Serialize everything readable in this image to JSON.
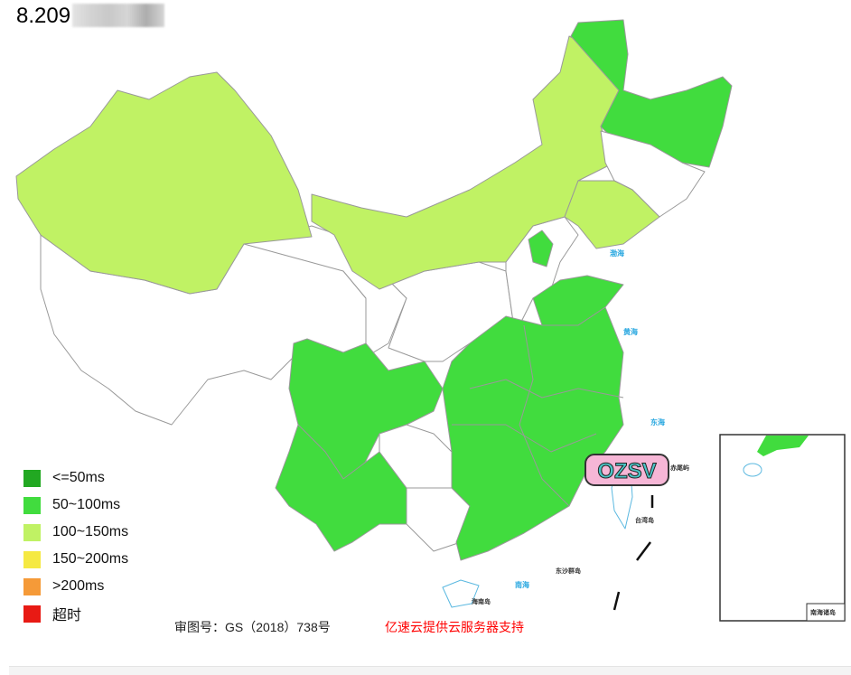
{
  "header": {
    "title": "8.209"
  },
  "legend": {
    "items": [
      {
        "label": "<=50ms",
        "color": "#22a822"
      },
      {
        "label": "50~100ms",
        "color": "#41dc3e"
      },
      {
        "label": "100~150ms",
        "color": "#c0f264"
      },
      {
        "label": "150~200ms",
        "color": "#f5e942"
      },
      {
        "label": ">200ms",
        "color": "#f59a38"
      },
      {
        "label": "超时",
        "color": "#e81a14"
      }
    ]
  },
  "map": {
    "region_levels": {
      "xinjiang": "100~150ms",
      "inner_mongolia": "100~150ms",
      "liaoning": "100~150ms",
      "heilongjiang": "50~100ms",
      "beijing": "50~100ms",
      "shandong": "50~100ms",
      "sichuan": "50~100ms",
      "yunnan": "50~100ms",
      "central_east": "50~100ms",
      "tibet": "none",
      "qinghai": "none",
      "jilin": "none",
      "hebei": "none",
      "guizhou": "none",
      "guangxi": "none",
      "hainan": "none",
      "taiwan": "none"
    },
    "sea_labels": [
      "渤海",
      "黄海",
      "东海",
      "南海"
    ],
    "island_labels": [
      "台湾岛",
      "海南岛",
      "东沙群岛",
      "赤尾屿",
      "南海诸岛"
    ],
    "watermark": "OZSV"
  },
  "footer": {
    "approval": "审图号：GS（2018）738号",
    "support": "亿速云提供云服务器支持"
  }
}
